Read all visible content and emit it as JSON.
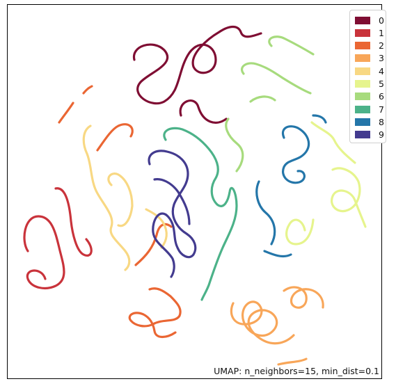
{
  "chart_data": {
    "type": "scatter",
    "title": "",
    "xlabel": "",
    "ylabel": "",
    "grid": false,
    "axes_ticks": false,
    "legend_position": "top-right",
    "annotation": "UMAP: n_neighbors=15, min_dist=0.1",
    "series": [
      {
        "name": "0",
        "color": "#7f0e33"
      },
      {
        "name": "1",
        "color": "#c9333b"
      },
      {
        "name": "2",
        "color": "#ea6633"
      },
      {
        "name": "3",
        "color": "#f8a659"
      },
      {
        "name": "4",
        "color": "#f8d883"
      },
      {
        "name": "5",
        "color": "#e6f48d"
      },
      {
        "name": "6",
        "color": "#a7db7d"
      },
      {
        "name": "7",
        "color": "#4cb289"
      },
      {
        "name": "8",
        "color": "#2476a9"
      },
      {
        "name": "9",
        "color": "#433b8f"
      }
    ]
  }
}
